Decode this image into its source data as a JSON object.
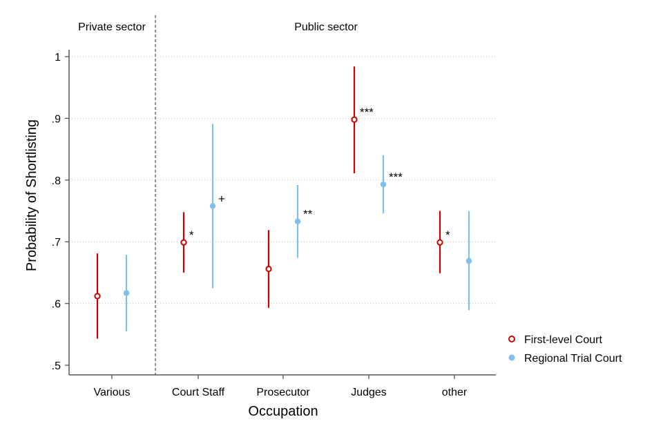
{
  "chart_data": {
    "type": "scatter",
    "xlabel": "Occupation",
    "ylabel": "Probability of Shortlisting",
    "categories": [
      "Various",
      "Court Staff",
      "Prosecutor",
      "Judges",
      "other"
    ],
    "ylim": [
      0.5,
      1.0
    ],
    "yticks": [
      {
        "value": 0.5,
        "label": ".5"
      },
      {
        "value": 0.6,
        "label": ".6"
      },
      {
        "value": 0.7,
        "label": ".7"
      },
      {
        "value": 0.8,
        "label": ".8"
      },
      {
        "value": 0.9,
        "label": ".9"
      },
      {
        "value": 1.0,
        "label": "1"
      }
    ],
    "grid": "horizontal dotted",
    "legend_position": "right",
    "sections": [
      {
        "label": "Private sector",
        "categories": [
          "Various"
        ]
      },
      {
        "label": "Public sector",
        "categories": [
          "Court Staff",
          "Prosecutor",
          "Judges",
          "other"
        ]
      }
    ],
    "series": [
      {
        "name": "First-level Court",
        "color": "#cc0000",
        "marker": "hollow-circle",
        "points": [
          {
            "category": "Various",
            "estimate": 0.612,
            "ci_low": 0.543,
            "ci_high": 0.681,
            "sig": ""
          },
          {
            "category": "Court Staff",
            "estimate": 0.699,
            "ci_low": 0.65,
            "ci_high": 0.748,
            "sig": "*"
          },
          {
            "category": "Prosecutor",
            "estimate": 0.656,
            "ci_low": 0.593,
            "ci_high": 0.719,
            "sig": ""
          },
          {
            "category": "Judges",
            "estimate": 0.898,
            "ci_low": 0.811,
            "ci_high": 0.984,
            "sig": "***"
          },
          {
            "category": "other",
            "estimate": 0.699,
            "ci_low": 0.649,
            "ci_high": 0.75,
            "sig": "*"
          }
        ]
      },
      {
        "name": "Regional Trial Court",
        "color": "#80bfe8",
        "marker": "filled-circle",
        "points": [
          {
            "category": "Various",
            "estimate": 0.617,
            "ci_low": 0.555,
            "ci_high": 0.679,
            "sig": ""
          },
          {
            "category": "Court Staff",
            "estimate": 0.758,
            "ci_low": 0.625,
            "ci_high": 0.891,
            "sig": "+"
          },
          {
            "category": "Prosecutor",
            "estimate": 0.733,
            "ci_low": 0.674,
            "ci_high": 0.792,
            "sig": "**"
          },
          {
            "category": "Judges",
            "estimate": 0.793,
            "ci_low": 0.746,
            "ci_high": 0.84,
            "sig": "***"
          },
          {
            "category": "other",
            "estimate": 0.669,
            "ci_low": 0.589,
            "ci_high": 0.75,
            "sig": ""
          }
        ]
      }
    ]
  }
}
